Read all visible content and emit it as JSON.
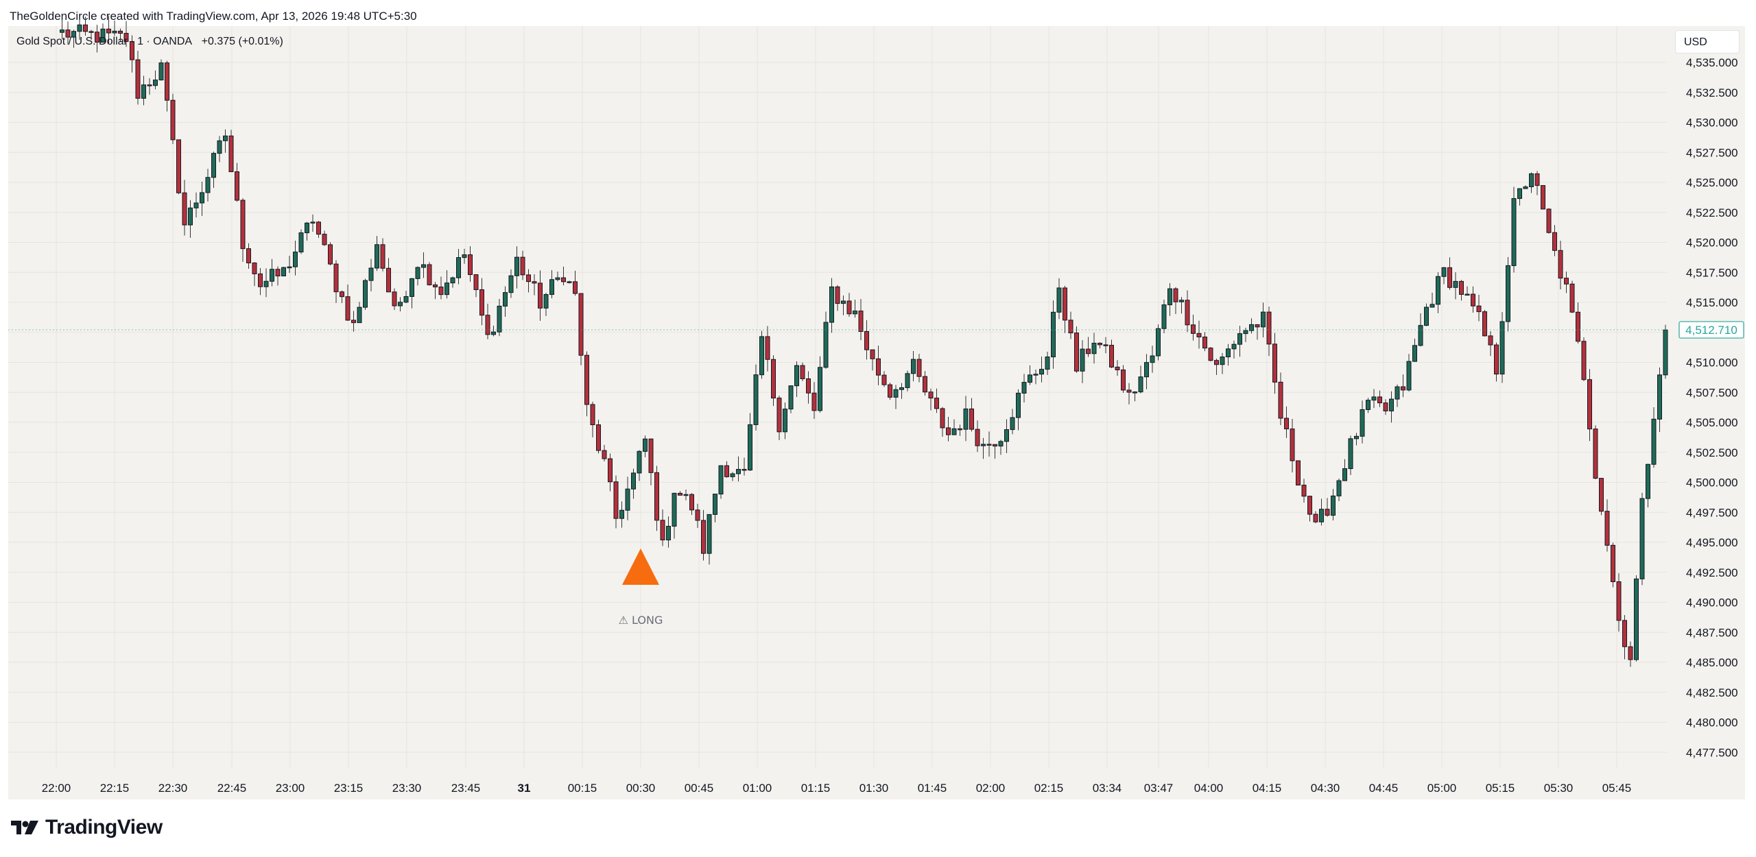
{
  "header": {
    "attribution": "TheGoldenCircle created with TradingView.com, Apr 13, 2026 19:48 UTC+5:30"
  },
  "symbol": {
    "title": "Gold Spot / U.S. Dollar · 1 · OANDA",
    "change": "+0.375 (+0.01%)"
  },
  "price_axis": {
    "currency": "USD",
    "last_price": "4,512.710"
  },
  "annotation": {
    "signal_label": "⚠ LONG",
    "signal_color": "#f76c0f"
  },
  "footer": {
    "brand": "TradingView"
  },
  "colors": {
    "up": "#1f6b58",
    "down": "#b5303b",
    "wick": "#131722",
    "grid": "#e6e4df",
    "plot_bg": "#f4f2ee",
    "price_label": "#26a69a"
  },
  "chart_data": {
    "type": "candlestick",
    "interval": "1",
    "ylim": [
      4475.5,
      4538.5
    ],
    "y_ticks": [
      "4,535.000",
      "4,532.500",
      "4,530.000",
      "4,527.500",
      "4,525.000",
      "4,522.500",
      "4,520.000",
      "4,517.500",
      "4,515.000",
      "4,512.500",
      "4,510.000",
      "4,507.500",
      "4,505.000",
      "4,502.500",
      "4,500.000",
      "4,497.500",
      "4,495.000",
      "4,492.500",
      "4,490.000",
      "4,487.500",
      "4,485.000",
      "4,482.500",
      "4,480.000",
      "4,477.500"
    ],
    "x_ticks": [
      "22:00",
      "22:15",
      "22:30",
      "22:45",
      "23:00",
      "23:15",
      "23:30",
      "23:45",
      "31",
      "00:15",
      "00:30",
      "00:45",
      "01:00",
      "01:15",
      "01:30",
      "01:45",
      "02:00",
      "02:15",
      "03:34",
      "03:47",
      "04:00",
      "04:15",
      "04:30",
      "04:45",
      "05:00",
      "05:15",
      "05:30",
      "05:45"
    ],
    "bold_tick": "31",
    "last_price": 4512.71,
    "signal": {
      "type": "LONG",
      "tick": "00:30"
    },
    "close_path": [
      {
        "i": 0,
        "v": 4537.5
      },
      {
        "i": 12,
        "v": 4537.0
      },
      {
        "i": 14,
        "v": 4532.5
      },
      {
        "i": 18,
        "v": 4534.5
      },
      {
        "i": 20,
        "v": 4528.0
      },
      {
        "i": 22,
        "v": 4521.5
      },
      {
        "i": 25,
        "v": 4524.5
      },
      {
        "i": 29,
        "v": 4529.0
      },
      {
        "i": 32,
        "v": 4520.0
      },
      {
        "i": 35,
        "v": 4516.5
      },
      {
        "i": 39,
        "v": 4517.5
      },
      {
        "i": 44,
        "v": 4522.0
      },
      {
        "i": 48,
        "v": 4516.5
      },
      {
        "i": 51,
        "v": 4513.0
      },
      {
        "i": 55,
        "v": 4520.0
      },
      {
        "i": 58,
        "v": 4514.0
      },
      {
        "i": 62,
        "v": 4518.5
      },
      {
        "i": 66,
        "v": 4516.0
      },
      {
        "i": 70,
        "v": 4519.0
      },
      {
        "i": 74,
        "v": 4512.0
      },
      {
        "i": 79,
        "v": 4518.5
      },
      {
        "i": 83,
        "v": 4515.0
      },
      {
        "i": 87,
        "v": 4517.5
      },
      {
        "i": 89,
        "v": 4515.5
      },
      {
        "i": 91,
        "v": 4506.0
      },
      {
        "i": 94,
        "v": 4501.5
      },
      {
        "i": 96,
        "v": 4497.0
      },
      {
        "i": 99,
        "v": 4500.5
      },
      {
        "i": 101,
        "v": 4503.5
      },
      {
        "i": 104,
        "v": 4494.5
      },
      {
        "i": 106,
        "v": 4499.5
      },
      {
        "i": 109,
        "v": 4498.0
      },
      {
        "i": 111,
        "v": 4494.5
      },
      {
        "i": 114,
        "v": 4501.5
      },
      {
        "i": 118,
        "v": 4500.5
      },
      {
        "i": 121,
        "v": 4512.0
      },
      {
        "i": 124,
        "v": 4505.0
      },
      {
        "i": 127,
        "v": 4509.5
      },
      {
        "i": 130,
        "v": 4506.0
      },
      {
        "i": 133,
        "v": 4516.0
      },
      {
        "i": 137,
        "v": 4514.0
      },
      {
        "i": 140,
        "v": 4510.0
      },
      {
        "i": 143,
        "v": 4507.5
      },
      {
        "i": 147,
        "v": 4509.5
      },
      {
        "i": 150,
        "v": 4506.5
      },
      {
        "i": 153,
        "v": 4504.0
      },
      {
        "i": 156,
        "v": 4505.5
      },
      {
        "i": 159,
        "v": 4503.0
      },
      {
        "i": 162,
        "v": 4504.0
      },
      {
        "i": 166,
        "v": 4508.0
      },
      {
        "i": 170,
        "v": 4510.5
      },
      {
        "i": 172,
        "v": 4516.5
      },
      {
        "i": 175,
        "v": 4509.5
      },
      {
        "i": 178,
        "v": 4512.0
      },
      {
        "i": 181,
        "v": 4510.0
      },
      {
        "i": 184,
        "v": 4507.0
      },
      {
        "i": 188,
        "v": 4510.5
      },
      {
        "i": 191,
        "v": 4516.5
      },
      {
        "i": 195,
        "v": 4513.0
      },
      {
        "i": 199,
        "v": 4509.5
      },
      {
        "i": 203,
        "v": 4512.5
      },
      {
        "i": 207,
        "v": 4513.5
      },
      {
        "i": 210,
        "v": 4505.5
      },
      {
        "i": 213,
        "v": 4500.5
      },
      {
        "i": 216,
        "v": 4496.0
      },
      {
        "i": 219,
        "v": 4499.0
      },
      {
        "i": 222,
        "v": 4503.0
      },
      {
        "i": 225,
        "v": 4506.5
      },
      {
        "i": 228,
        "v": 4506.0
      },
      {
        "i": 231,
        "v": 4508.0
      },
      {
        "i": 235,
        "v": 4514.5
      },
      {
        "i": 238,
        "v": 4517.5
      },
      {
        "i": 241,
        "v": 4516.0
      },
      {
        "i": 244,
        "v": 4513.5
      },
      {
        "i": 247,
        "v": 4509.5
      },
      {
        "i": 250,
        "v": 4523.0
      },
      {
        "i": 253,
        "v": 4526.0
      },
      {
        "i": 256,
        "v": 4520.5
      },
      {
        "i": 259,
        "v": 4516.0
      },
      {
        "i": 262,
        "v": 4509.0
      },
      {
        "i": 264,
        "v": 4501.0
      },
      {
        "i": 266,
        "v": 4495.0
      },
      {
        "i": 268,
        "v": 4488.5
      },
      {
        "i": 270,
        "v": 4485.5
      },
      {
        "i": 272,
        "v": 4498.0
      },
      {
        "i": 274,
        "v": 4506.0
      },
      {
        "i": 276,
        "v": 4512.7
      }
    ]
  }
}
